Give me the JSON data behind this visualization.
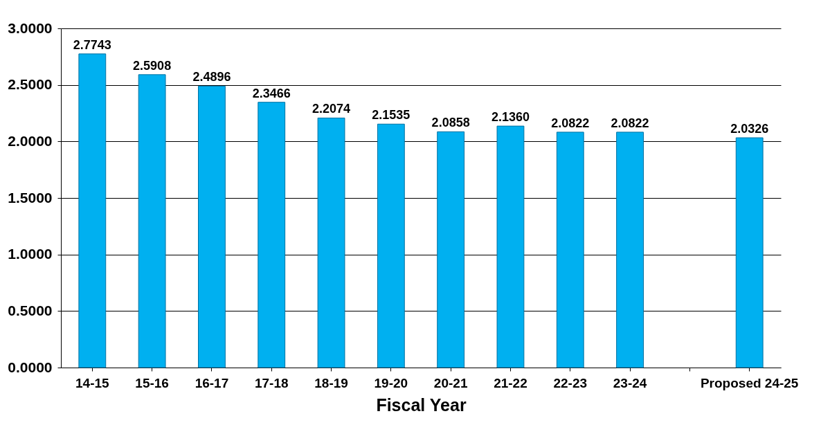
{
  "chart_data": {
    "type": "bar",
    "xlabel": "Fiscal Year",
    "categories": [
      "14-15",
      "15-16",
      "16-17",
      "17-18",
      "18-19",
      "19-20",
      "20-21",
      "21-22",
      "22-23",
      "23-24",
      null,
      "Proposed 24-25"
    ],
    "values": [
      2.7743,
      2.5908,
      2.4896,
      2.3466,
      2.2074,
      2.1535,
      2.0858,
      2.136,
      2.0822,
      2.0822,
      null,
      2.0326
    ],
    "value_labels": [
      "2.7743",
      "2.5908",
      "2.4896",
      "2.3466",
      "2.2074",
      "2.1535",
      "2.0858",
      "2.1360",
      "2.0822",
      "2.0822",
      null,
      "2.0326"
    ],
    "color": "#00b0f0",
    "ylim": [
      0,
      3
    ],
    "yticks": [
      {
        "value": 0,
        "label": "0.0000"
      },
      {
        "value": 0.5,
        "label": "0.5000"
      },
      {
        "value": 1,
        "label": "1.0000"
      },
      {
        "value": 1.5,
        "label": "1.5000"
      },
      {
        "value": 2,
        "label": "2.0000"
      },
      {
        "value": 2.5,
        "label": "2.5000"
      },
      {
        "value": 3,
        "label": "3.0000"
      }
    ],
    "grid": "y"
  }
}
